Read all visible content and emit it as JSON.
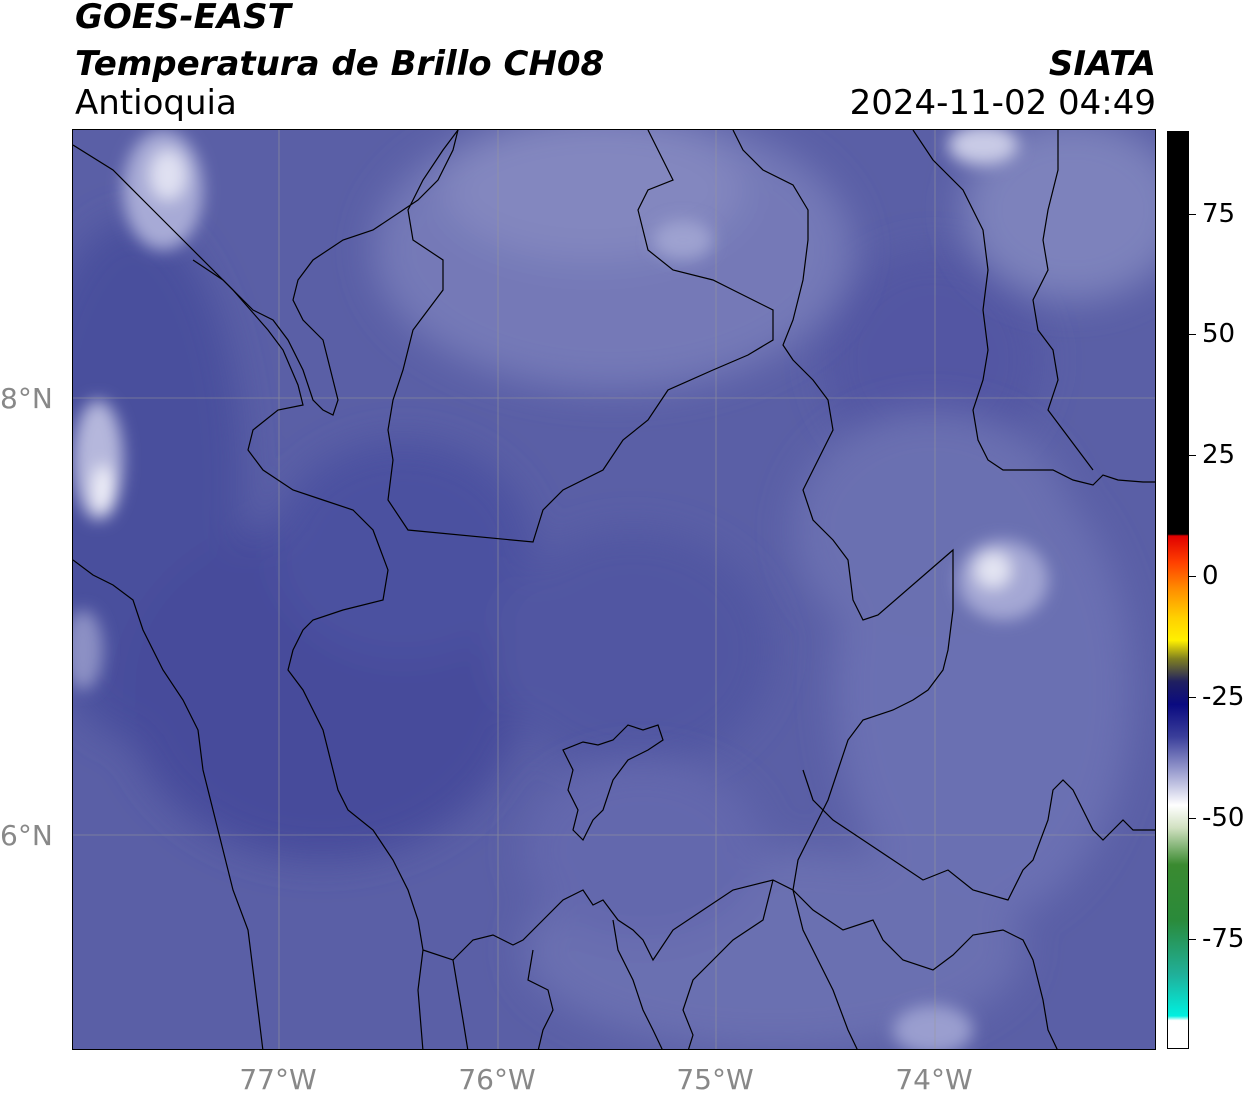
{
  "header": {
    "satellite": "GOES-EAST",
    "product": "Temperatura de Brillo CH08",
    "region": "Antioquia",
    "agency": "SIATA",
    "timestamp": "2024-11-02 04:49"
  },
  "map": {
    "latitude_labels": [
      "8°N",
      "6°N"
    ],
    "longitude_labels": [
      "77°W",
      "76°W",
      "75°W",
      "74°W"
    ],
    "base_color": "#5a5fa6",
    "gridline_color": "#9a9a9a",
    "border_color": "#000000"
  },
  "colorbar": {
    "ticks": [
      "75",
      "50",
      "25",
      "0",
      "-25",
      "-50",
      "-75"
    ]
  }
}
